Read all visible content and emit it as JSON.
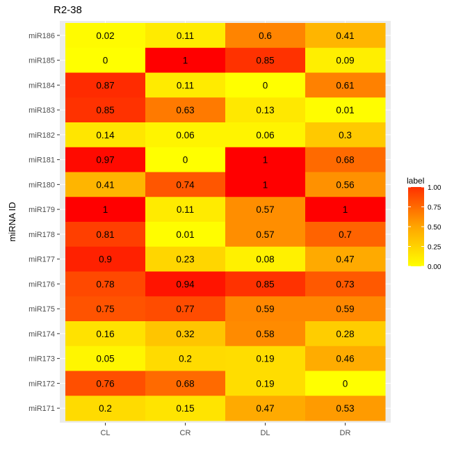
{
  "chart_data": {
    "type": "heatmap",
    "title": "R2-38",
    "xlabel": "",
    "ylabel": "miRNA ID",
    "x_categories": [
      "CL",
      "CR",
      "DL",
      "DR"
    ],
    "y_categories": [
      "miR186",
      "miR185",
      "miR184",
      "miR183",
      "miR182",
      "miR181",
      "miR180",
      "miR179",
      "miR178",
      "miR177",
      "miR176",
      "miR175",
      "miR174",
      "miR173",
      "miR172",
      "miR171"
    ],
    "values": [
      [
        0.02,
        0.11,
        0.6,
        0.41
      ],
      [
        0,
        1,
        0.85,
        0.09
      ],
      [
        0.87,
        0.11,
        0,
        0.61
      ],
      [
        0.85,
        0.63,
        0.13,
        0.01
      ],
      [
        0.14,
        0.06,
        0.06,
        0.3
      ],
      [
        0.97,
        0,
        1,
        0.68
      ],
      [
        0.41,
        0.74,
        1,
        0.56
      ],
      [
        1,
        0.11,
        0.57,
        1
      ],
      [
        0.81,
        0.01,
        0.57,
        0.7
      ],
      [
        0.9,
        0.23,
        0.08,
        0.47
      ],
      [
        0.78,
        0.94,
        0.85,
        0.73
      ],
      [
        0.75,
        0.77,
        0.59,
        0.59
      ],
      [
        0.16,
        0.32,
        0.58,
        0.28
      ],
      [
        0.05,
        0.2,
        0.19,
        0.46
      ],
      [
        0.76,
        0.68,
        0.19,
        0
      ],
      [
        0.2,
        0.15,
        0.47,
        0.53
      ]
    ],
    "legend": {
      "title": "label",
      "ticks": [
        "1.00",
        "0.75",
        "0.50",
        "0.25",
        "0.00"
      ],
      "low_color": "#ffff00",
      "high_color": "#ff0000",
      "placement": "right"
    },
    "panel_background": "#ebebeb",
    "grid": true
  }
}
